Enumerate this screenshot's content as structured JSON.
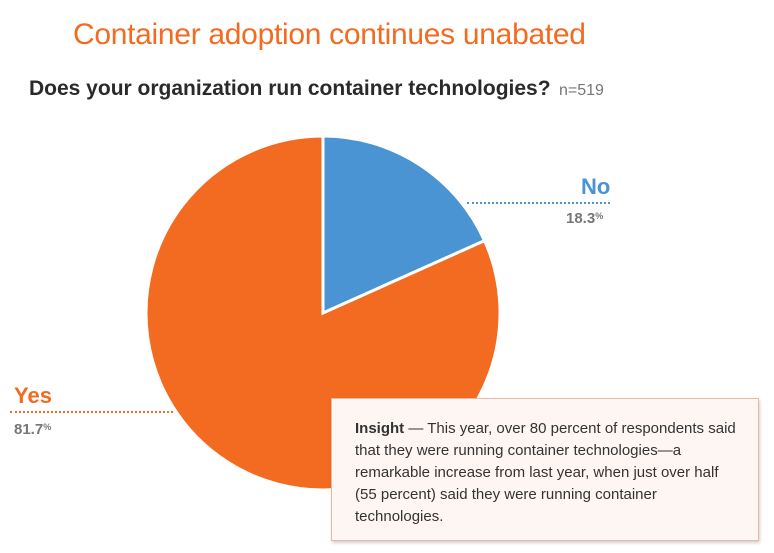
{
  "page": {
    "headline": "Container adoption continues unabated",
    "question": "Does your organization run container technologies?",
    "sample_size": "n=519"
  },
  "chart_data": {
    "type": "pie",
    "title": "Does your organization run container technologies?",
    "slices": [
      {
        "label": "No",
        "value": 18.3,
        "display": "18.3",
        "unit": "%",
        "color": "#4A94D3"
      },
      {
        "label": "Yes",
        "value": 81.7,
        "display": "81.7",
        "unit": "%",
        "color": "#F26B21"
      }
    ]
  },
  "insight": {
    "label": "Insight",
    "text": " — This year, over 80 percent of respondents said that they were running container technologies—a remarkable increase from last year, when just over half (55 percent) said they were running container technologies."
  },
  "colors": {
    "accent": "#F26B21",
    "no": "#4A94D3",
    "text_dark": "#2a2a2a",
    "text_muted": "#777777",
    "insight_border": "#e9b9a3",
    "insight_bg": "#fdf6f3"
  }
}
